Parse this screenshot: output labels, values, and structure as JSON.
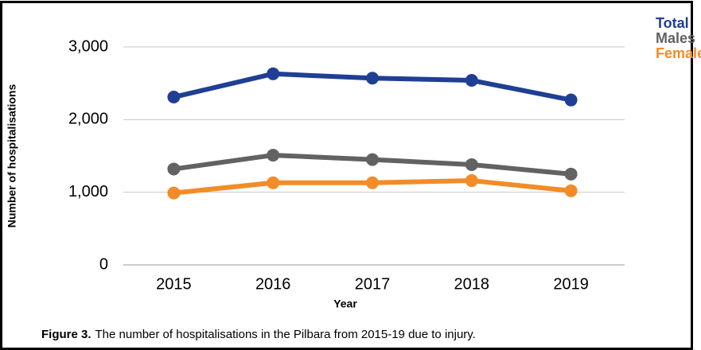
{
  "chart_data": {
    "type": "line",
    "caption_label": "Figure 3.",
    "caption": "The number of hospitalisations in the Pilbara from 2015-19 due to injury.",
    "x_label": "Year",
    "y_label": "Number of hospitalisations",
    "categories": [
      "2015",
      "2016",
      "2017",
      "2018",
      "2019"
    ],
    "series": [
      {
        "name": "Total",
        "color": "#1f3f94",
        "values": [
          2310,
          2630,
          2570,
          2540,
          2270
        ]
      },
      {
        "name": "Males",
        "color": "#626262",
        "values": [
          1320,
          1510,
          1450,
          1380,
          1250
        ]
      },
      {
        "name": "Females",
        "color": "#f28c28",
        "values": [
          990,
          1130,
          1130,
          1160,
          1020
        ]
      }
    ],
    "ylim": [
      0,
      3000
    ],
    "yticks": [
      0,
      {
        "value": 1000,
        "label": "1,000"
      },
      {
        "value": 2000,
        "label": "2,000"
      },
      {
        "value": 3000,
        "label": "3,000"
      }
    ],
    "grid": true,
    "legend": "top-right"
  }
}
